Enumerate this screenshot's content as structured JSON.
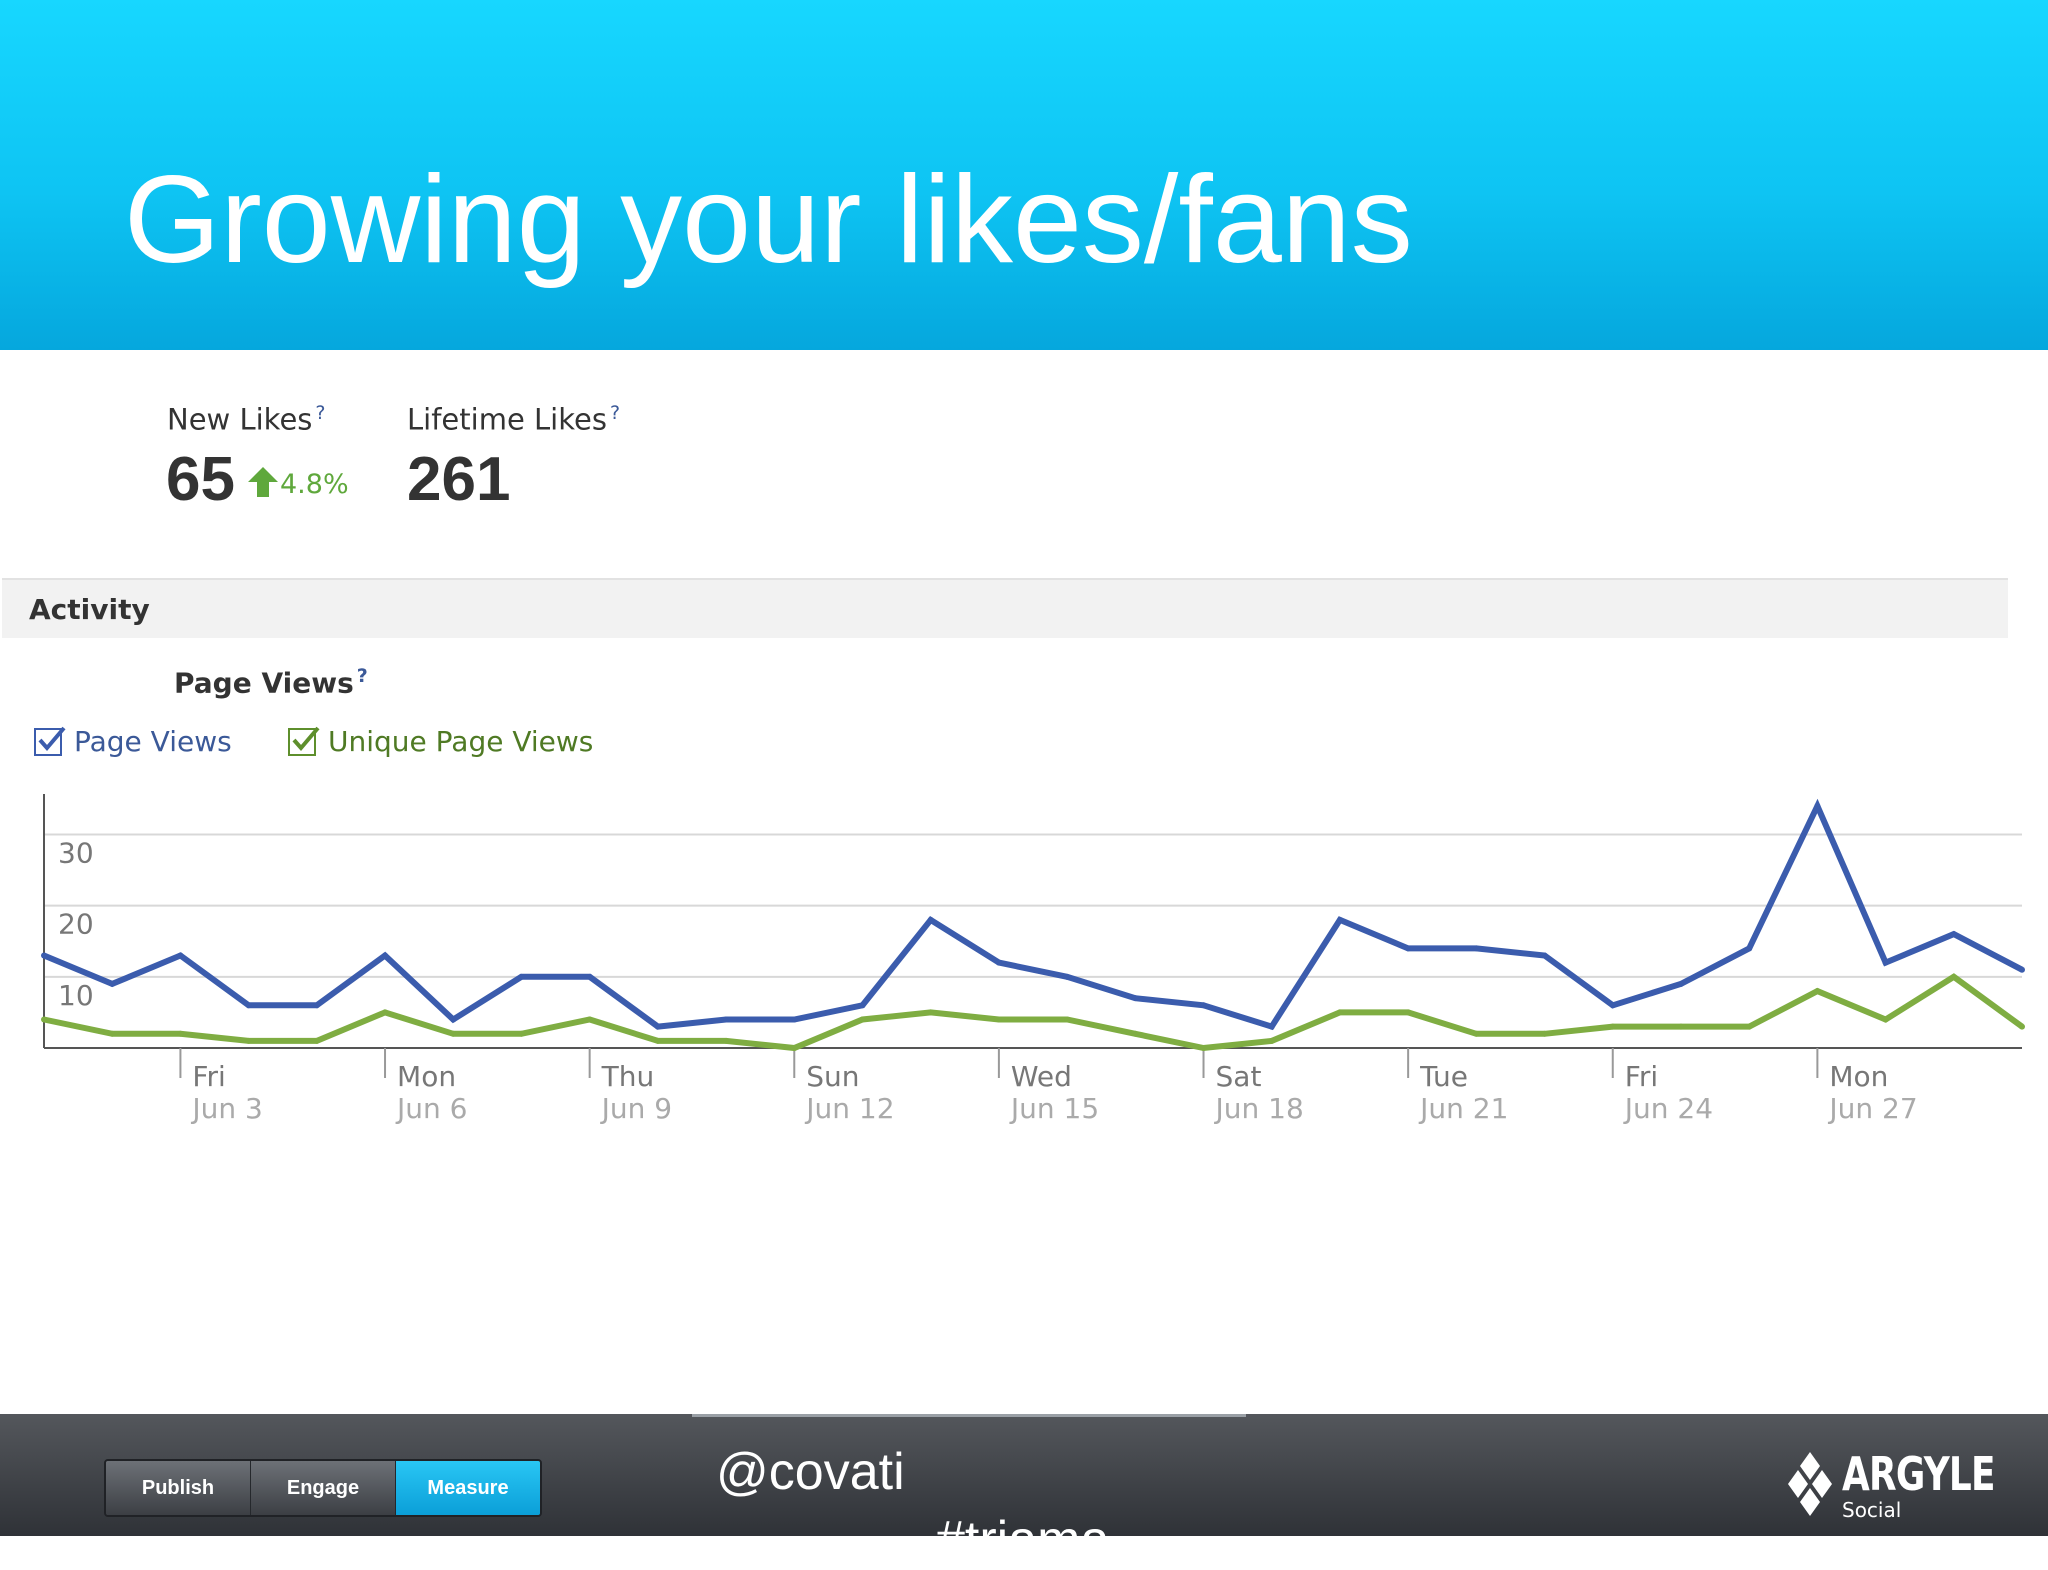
{
  "slide": {
    "title": "Growing your likes/fans"
  },
  "stats": {
    "new_likes_label": "New Likes",
    "new_likes_value": "65",
    "new_likes_change": "4.8%",
    "lifetime_likes_label": "Lifetime Likes",
    "lifetime_likes_value": "261",
    "help_mark": "?"
  },
  "section": {
    "title": "Activity"
  },
  "chart_data": {
    "type": "line",
    "title": "Page Views",
    "ylim": [
      0,
      34
    ],
    "yticks": [
      10,
      20,
      30
    ],
    "grid": true,
    "legend": "top-left",
    "x_start": "Jun 1",
    "x": [
      1,
      2,
      3,
      4,
      5,
      6,
      7,
      8,
      9,
      10,
      11,
      12,
      13,
      14,
      15,
      16,
      17,
      18,
      19,
      20,
      21,
      22,
      23,
      24,
      25,
      26,
      27,
      28,
      29,
      30
    ],
    "xticks": [
      {
        "day": 3,
        "weekday": "Fri",
        "date": "Jun 3"
      },
      {
        "day": 6,
        "weekday": "Mon",
        "date": "Jun 6"
      },
      {
        "day": 9,
        "weekday": "Thu",
        "date": "Jun 9"
      },
      {
        "day": 12,
        "weekday": "Sun",
        "date": "Jun 12"
      },
      {
        "day": 15,
        "weekday": "Wed",
        "date": "Jun 15"
      },
      {
        "day": 18,
        "weekday": "Sat",
        "date": "Jun 18"
      },
      {
        "day": 21,
        "weekday": "Tue",
        "date": "Jun 21"
      },
      {
        "day": 24,
        "weekday": "Fri",
        "date": "Jun 24"
      },
      {
        "day": 27,
        "weekday": "Mon",
        "date": "Jun 27"
      }
    ],
    "series": [
      {
        "name": "Page Views",
        "color": "#3b5cad",
        "values": [
          13,
          9,
          13,
          6,
          6,
          13,
          4,
          10,
          10,
          3,
          4,
          4,
          6,
          18,
          12,
          10,
          7,
          6,
          3,
          18,
          14,
          14,
          13,
          6,
          9,
          14,
          34,
          12,
          16,
          11
        ]
      },
      {
        "name": "Unique Page Views",
        "color": "#7fad42",
        "values": [
          4,
          2,
          2,
          1,
          1,
          5,
          2,
          2,
          4,
          1,
          1,
          0,
          4,
          5,
          4,
          4,
          2,
          0,
          1,
          5,
          5,
          2,
          2,
          3,
          3,
          3,
          8,
          4,
          10,
          3
        ]
      }
    ]
  },
  "footer": {
    "tabs": [
      "Publish",
      "Engage",
      "Measure"
    ],
    "active_tab": "Measure",
    "handle": "@covati",
    "hashtag": "#triama",
    "logo_name": "ARGYLE",
    "logo_sub": "Social"
  }
}
